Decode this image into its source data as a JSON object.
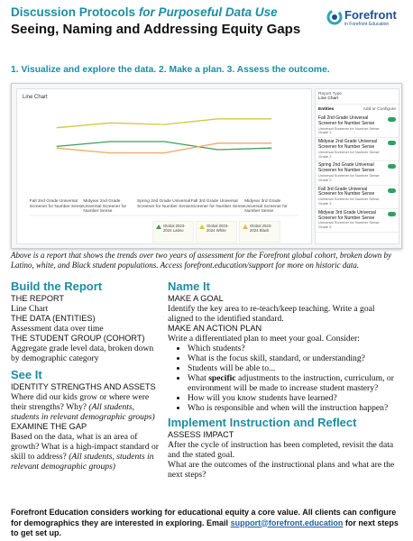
{
  "header": {
    "title": "Discussion Protocols",
    "title_italic": "for Purposeful Data Use",
    "subtitle": "Seeing, Naming and Addressing Equity Gaps",
    "logo_name": "Forefront",
    "logo_tagline": "in Forefront Education"
  },
  "steps": "1. Visualize and explore the data. 2. Make a plan. 3. Assess the outcome.",
  "chart_data": {
    "type": "line",
    "title": "Line Chart",
    "categories": [
      "Fall 2nd Grade Universal Screener for Number Sense",
      "Midyear 2nd Grade Universal Screener for Number Sense",
      "Spring 2nd Grade Universal Screener for Number Sense",
      "Fall 3rd Grade Universal Screener for Number Sense",
      "Midyear 3rd Grade Universal Screener for Number Sense"
    ],
    "series": [
      {
        "name": "Global 2023-2024 Latino",
        "color": "#3f9d5a",
        "values": [
          54,
          60,
          60,
          50,
          52
        ]
      },
      {
        "name": "Global 2023-2024 White",
        "color": "#d8c53c",
        "values": [
          77,
          83,
          81,
          88,
          88
        ]
      },
      {
        "name": "Global 2023-2024 Black",
        "color": "#f2a865",
        "values": [
          52,
          46,
          46,
          58,
          58
        ]
      }
    ],
    "ylim": [
      0,
      100
    ]
  },
  "panel": {
    "report_type_label": "Report Type",
    "report_type": "Line Chart",
    "entities_label": "Entities",
    "configure": "Add or Configure",
    "entities": [
      {
        "name": "Fall 2nd Grade Universal Screener for Number Sense",
        "detail": "Universal Screener for Number Sense Grade 2"
      },
      {
        "name": "Midyear 2nd Grade Universal Screener for Number Sense",
        "detail": "Universal Screener for Number Sense Grade 2"
      },
      {
        "name": "Spring 2nd Grade Universal Screener for Number Sense",
        "detail": "Universal Screener for Number Sense Grade 2"
      },
      {
        "name": "Fall 3rd Grade Universal Screener for Number Sense",
        "detail": "Universal Screener for Number Sense Grade 3"
      },
      {
        "name": "Midyear 3rd Grade Universal Screener for Number Sense",
        "detail": "Universal Screener for Number Sense Grade 3"
      }
    ]
  },
  "caption": "Above is a report that shows the trends over two years of assessment for the Forefront global cohort, broken down by Latino, white, and Black student populations. Access forefront.education/support for more on historic data.",
  "build": {
    "heading": "Build the Report",
    "report_label": "THE REPORT",
    "report": "Line Chart",
    "data_label": "THE DATA (ENTITIES)",
    "data": "Assessment data over time",
    "group_label": "THE STUDENT GROUP (COHORT)",
    "group": "Aggregate grade level data, broken down by demographic category"
  },
  "see_it": {
    "heading": "See It",
    "identity_label": "IDENTITY STRENGTHS AND ASSETS",
    "identity": "Where did our kids grow or where were their strengths? Why?",
    "identity_note": "(All students, students in relevant demographic groups)",
    "gap_label": "EXAMINE THE GAP",
    "gap": "Based on the data, what is an area of growth? What is a high-impact standard or skill to address?",
    "gap_note": "(All students, students in relevant demographic groups)"
  },
  "name_it": {
    "heading": "Name It",
    "goal_label": "MAKE A GOAL",
    "goal": "Identify the key area to re-teach/keep teaching. Write a goal aligned to the identified standard.",
    "plan_label": "MAKE AN ACTION PLAN",
    "plan": "Write a differentiated plan to meet your goal. Consider:",
    "bullet_1": "Which students?",
    "bullet_2": "What is the focus skill, standard, or understanding?",
    "bullet_3": "Students will be able to...",
    "bullet_4_start": "What",
    "bullet_4_bold": "specific",
    "bullet_4_end": "adjustments to the instruction, curriculum, or environment will be made to increase student mastery?",
    "bullet_5": "How will you know students have learned?",
    "bullet_6": "Who is responsible and when will the instruction happen?"
  },
  "implement": {
    "heading": "Implement Instruction and Reflect",
    "impact_label": "ASSESS IMPACT",
    "impact_1": "After the cycle of instruction has been completed, revisit the data and the stated goal.",
    "impact_2": "What are the outcomes of the instructional plans and what are the next steps?"
  },
  "footer": {
    "text": "Forefront Education considers working for educational equity a core value. All clients can configure for demographics they are interested in exploring. Email",
    "email": "support@forefront.education",
    "text_end": "for next steps to get set up."
  }
}
